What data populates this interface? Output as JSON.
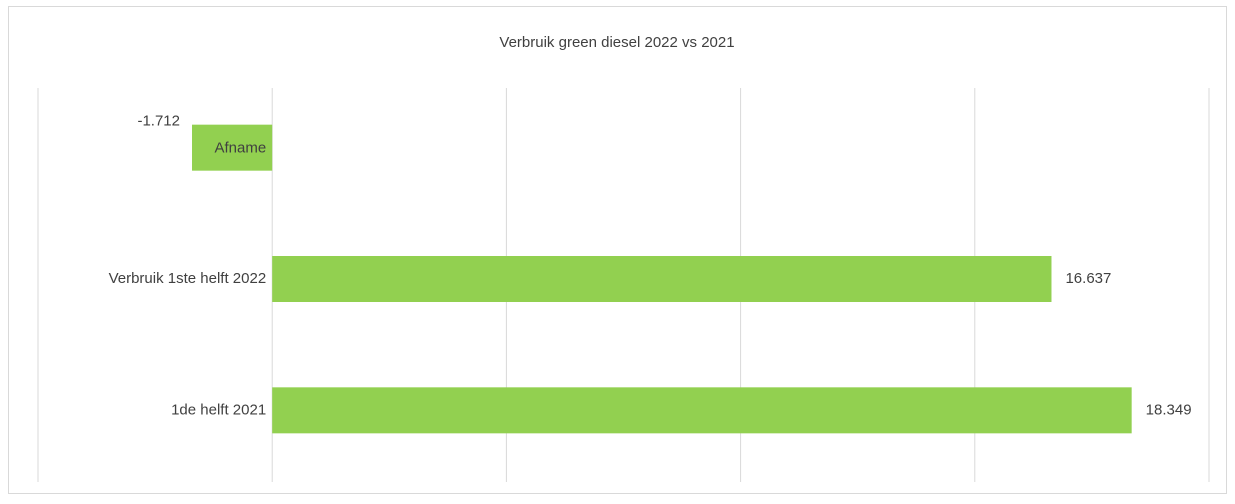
{
  "chart_data": {
    "type": "bar",
    "orientation": "horizontal",
    "title": "Verbruik green diesel 2022 vs 2021",
    "categories": [
      "Afname",
      "Verbruik 1ste helft 2022",
      "1de helft 2021"
    ],
    "values": [
      -1712,
      16637,
      18349
    ],
    "value_labels": [
      "-1.712",
      "16.637",
      "18.349"
    ],
    "color": "#92d050",
    "xlim": [
      -5000,
      20000
    ],
    "xticks": [
      -5000,
      0,
      5000,
      10000,
      15000,
      20000
    ],
    "grid": true
  }
}
